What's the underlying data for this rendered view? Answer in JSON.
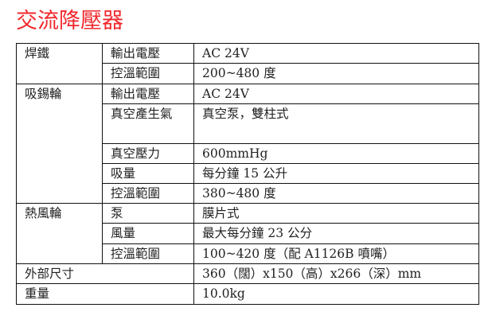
{
  "title": "交流降壓器",
  "table": {
    "groups": [
      {
        "name": "焊鐵",
        "rows": [
          {
            "label": "輸出電壓",
            "value": "AC 24V"
          },
          {
            "label": "控溫範圍",
            "value": "200~480 度"
          }
        ]
      },
      {
        "name": "吸錫輪",
        "rows": [
          {
            "label": "輸出電壓",
            "value": "AC 24V"
          },
          {
            "label": "真空產生氣",
            "value": "真空泵，雙柱式"
          },
          {
            "label": "真空壓力",
            "value": "600mmHg"
          },
          {
            "label": "吸量",
            "value": "每分鐘 15 公升"
          },
          {
            "label": "控溫範圍",
            "value": "380~480 度"
          }
        ]
      },
      {
        "name": "熱風輪",
        "rows": [
          {
            "label": "泵",
            "value": "膜片式"
          },
          {
            "label": "風量",
            "value": "最大每分鐘 23 公分"
          },
          {
            "label": "控溫範圍",
            "value": "100~420 度（配 A1126B 噴嘴）"
          }
        ]
      }
    ],
    "footer_rows": [
      {
        "label": "外部尺寸",
        "value": "360（闊）x150（高）x266（深）mm"
      },
      {
        "label": "重量",
        "value": "10.0kg"
      }
    ]
  },
  "colors": {
    "title": "#f0282d"
  }
}
